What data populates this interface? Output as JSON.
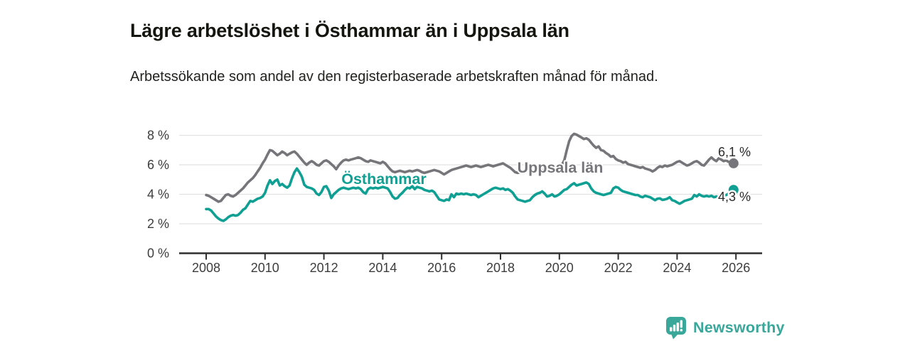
{
  "header": {
    "title": "Lägre arbetslöshet i Östhammar än i Uppsala län",
    "subtitle": "Arbetssökande som andel av den registerbaserade arbetskraften månad för månad."
  },
  "chart_data": {
    "type": "line",
    "title": "Lägre arbetslöshet i Östhammar än i Uppsala län",
    "subtitle": "Arbetssökande som andel av den registerbaserade arbetskraften månad för månad.",
    "x_start_year": 2008,
    "points_per_year": 12,
    "x_ticks": [
      2008,
      2010,
      2012,
      2014,
      2016,
      2018,
      2020,
      2022,
      2024,
      2026
    ],
    "y_ticks": [
      {
        "value": 8,
        "label": "8 %"
      },
      {
        "value": 6,
        "label": "6 %"
      },
      {
        "value": 4,
        "label": "4 %"
      },
      {
        "value": 2,
        "label": "2 %"
      },
      {
        "value": 0,
        "label": "0 %"
      }
    ],
    "ylim": [
      0,
      8.6
    ],
    "grid": "horizontal",
    "legend_position": "inline-labels",
    "style": {
      "grid_color": "#e2e2e2",
      "axis_color": "#2e2e2e",
      "tick_text_color": "#3d3d3d"
    },
    "series": [
      {
        "id": "uppsala-lan",
        "name": "Uppsala län",
        "label": "Uppsala län",
        "color": "#76767a",
        "end_label": "6,1 %",
        "end_value": 6.1,
        "values": [
          3.95,
          3.9,
          3.8,
          3.7,
          3.6,
          3.5,
          3.55,
          3.75,
          3.95,
          4.0,
          3.9,
          3.85,
          3.95,
          4.1,
          4.25,
          4.4,
          4.6,
          4.8,
          4.95,
          5.1,
          5.3,
          5.55,
          5.8,
          6.1,
          6.35,
          6.7,
          7.0,
          6.95,
          6.8,
          6.65,
          6.75,
          6.9,
          6.8,
          6.65,
          6.75,
          6.85,
          6.9,
          6.75,
          6.55,
          6.35,
          6.15,
          6.0,
          6.15,
          6.25,
          6.15,
          6.0,
          5.95,
          6.1,
          6.25,
          6.3,
          6.2,
          6.05,
          5.9,
          5.7,
          5.95,
          6.15,
          6.3,
          6.35,
          6.3,
          6.35,
          6.4,
          6.45,
          6.5,
          6.45,
          6.35,
          6.25,
          6.2,
          6.3,
          6.25,
          6.2,
          6.15,
          6.1,
          6.2,
          6.1,
          5.9,
          5.7,
          5.55,
          5.5,
          5.55,
          5.6,
          5.55,
          5.5,
          5.55,
          5.6,
          5.55,
          5.6,
          5.65,
          5.6,
          5.5,
          5.45,
          5.5,
          5.55,
          5.6,
          5.65,
          5.6,
          5.55,
          5.45,
          5.35,
          5.45,
          5.55,
          5.65,
          5.7,
          5.75,
          5.8,
          5.85,
          5.9,
          5.95,
          5.9,
          5.85,
          5.9,
          5.95,
          5.9,
          5.85,
          5.9,
          5.95,
          6.0,
          5.95,
          5.9,
          5.95,
          6.0,
          6.05,
          6.1,
          6.0,
          5.9,
          5.8,
          5.65,
          5.5,
          5.45,
          5.5,
          5.55,
          5.6,
          5.65,
          5.6,
          5.55,
          5.6,
          5.65,
          5.7,
          5.65,
          5.6,
          5.65,
          5.7,
          5.75,
          5.8,
          5.85,
          5.9,
          6.0,
          6.3,
          7.0,
          7.6,
          7.95,
          8.1,
          8.05,
          7.95,
          7.85,
          7.75,
          7.8,
          7.7,
          7.5,
          7.3,
          7.15,
          7.25,
          7.0,
          6.95,
          6.8,
          6.7,
          6.55,
          6.6,
          6.4,
          6.3,
          6.25,
          6.15,
          6.2,
          6.05,
          6.0,
          5.95,
          5.9,
          5.85,
          5.8,
          5.85,
          5.75,
          5.7,
          5.65,
          5.55,
          5.65,
          5.8,
          5.9,
          5.85,
          5.95,
          5.9,
          5.95,
          6.0,
          6.1,
          6.2,
          6.25,
          6.15,
          6.05,
          5.95,
          6.0,
          6.1,
          6.2,
          6.25,
          6.15,
          6.0,
          5.95,
          6.15,
          6.35,
          6.5,
          6.35,
          6.25,
          6.45,
          6.35,
          6.25,
          6.3,
          6.2,
          6.15,
          6.1
        ]
      },
      {
        "id": "osthammar",
        "name": "Östhammar",
        "label": "Östhammar",
        "color": "#10a093",
        "end_label": "4,3 %",
        "end_value": 4.3,
        "values": [
          3.0,
          3.0,
          2.9,
          2.7,
          2.5,
          2.35,
          2.25,
          2.2,
          2.3,
          2.45,
          2.55,
          2.6,
          2.55,
          2.6,
          2.75,
          2.95,
          3.05,
          3.3,
          3.55,
          3.5,
          3.6,
          3.7,
          3.75,
          3.85,
          4.1,
          4.6,
          4.95,
          4.7,
          4.9,
          5.0,
          4.6,
          4.7,
          4.55,
          4.45,
          4.6,
          5.1,
          5.5,
          5.75,
          5.5,
          5.2,
          4.65,
          4.5,
          4.45,
          4.4,
          4.3,
          4.05,
          3.95,
          4.15,
          4.5,
          4.55,
          4.25,
          3.75,
          4.0,
          4.15,
          4.3,
          4.4,
          4.45,
          4.4,
          4.35,
          4.4,
          4.45,
          4.4,
          4.45,
          4.35,
          4.15,
          4.05,
          4.35,
          4.45,
          4.4,
          4.45,
          4.4,
          4.45,
          4.5,
          4.45,
          4.4,
          4.15,
          3.85,
          3.7,
          3.75,
          3.95,
          4.1,
          4.3,
          4.45,
          4.4,
          4.55,
          4.35,
          4.5,
          4.45,
          4.4,
          4.3,
          4.25,
          4.2,
          4.25,
          4.15,
          3.9,
          3.65,
          3.6,
          3.55,
          3.65,
          3.6,
          4.0,
          3.8,
          4.05,
          4.0,
          4.05,
          4.0,
          4.05,
          4.0,
          3.95,
          4.0,
          3.95,
          3.8,
          3.9,
          4.0,
          4.1,
          4.2,
          4.3,
          4.4,
          4.45,
          4.4,
          4.35,
          4.4,
          4.3,
          4.35,
          4.25,
          4.1,
          3.85,
          3.65,
          3.6,
          3.55,
          3.5,
          3.55,
          3.6,
          3.8,
          3.95,
          4.05,
          4.1,
          4.2,
          4.05,
          3.85,
          3.9,
          4.0,
          3.85,
          3.9,
          4.0,
          4.15,
          4.3,
          4.35,
          4.5,
          4.65,
          4.75,
          4.6,
          4.65,
          4.7,
          4.75,
          4.8,
          4.7,
          4.4,
          4.2,
          4.1,
          4.05,
          4.0,
          3.95,
          4.0,
          4.05,
          4.1,
          4.4,
          4.5,
          4.45,
          4.3,
          4.2,
          4.15,
          4.1,
          4.05,
          4.0,
          3.95,
          3.95,
          3.85,
          3.8,
          3.9,
          3.85,
          3.8,
          3.7,
          3.6,
          3.7,
          3.72,
          3.62,
          3.65,
          3.7,
          3.8,
          3.6,
          3.55,
          3.45,
          3.36,
          3.45,
          3.55,
          3.6,
          3.65,
          3.7,
          3.95,
          3.85,
          4.0,
          3.9,
          3.85,
          3.9,
          3.85,
          3.9,
          3.8,
          3.85,
          3.8,
          3.85,
          3.9,
          3.95,
          4.05,
          4.15,
          4.3
        ]
      }
    ]
  },
  "footer": {
    "brand": "Newsworthy",
    "brand_color": "#3aa79b",
    "icon": "newsworthy-bar-chart-bubble-icon"
  }
}
